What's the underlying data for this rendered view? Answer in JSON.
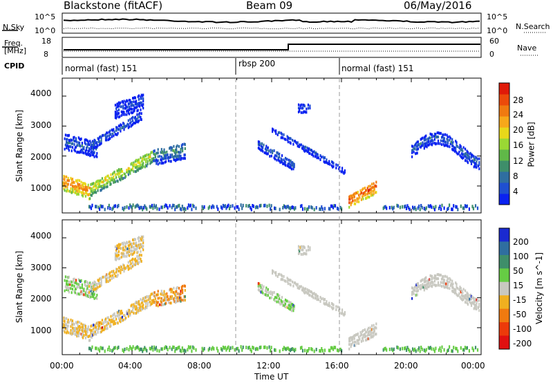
{
  "header": {
    "station": "Blackstone (fitACF)",
    "beam": "Beam 09",
    "date": "06/May/2016"
  },
  "top_panels": {
    "nsky_label": "N.Sky",
    "nsky_top": "10^5",
    "nsky_bottom": "10^0",
    "nsearch_top": "10^5",
    "nsearch_bottom": "10^0",
    "nsearch_label": "N.Search",
    "freq_label": "Freq.",
    "freq_unit": "[MHz]",
    "freq_top": "18",
    "freq_bottom": "8",
    "nave_top": "60",
    "nave_bottom": "0",
    "nave_label": "Nave",
    "cpid_label": "CPID",
    "cpid_segments": [
      {
        "label": "normal (fast) 151",
        "start_hour": 0
      },
      {
        "label": "rbsp 200",
        "start_hour": 10
      },
      {
        "label": "normal (fast) 151",
        "start_hour": 16
      }
    ]
  },
  "chart_data": [
    {
      "type": "heatmap",
      "title": "",
      "ylabel": "Slant Range [km]",
      "xlabel": "",
      "ylim": [
        100,
        4600
      ],
      "xlim_hours": [
        0,
        24
      ],
      "yticks": [
        "1000",
        "2000",
        "3000",
        "4000"
      ],
      "colorbar": {
        "label": "Power [dB]",
        "ticks": [
          "4",
          "8",
          "12",
          "16",
          "20",
          "24",
          "28"
        ],
        "colors": [
          "#0a22f0",
          "#1f4fd0",
          "#2f6ea0",
          "#3e8e6a",
          "#60b848",
          "#9ad834",
          "#e8d81a",
          "#f7a81a",
          "#f07a10",
          "#ec4a0a",
          "#e01a08"
        ]
      }
    },
    {
      "type": "heatmap",
      "title": "",
      "ylabel": "Slant Range [km]",
      "xlabel": "Time UT",
      "ylim": [
        100,
        4600
      ],
      "xlim_hours": [
        0,
        24
      ],
      "yticks": [
        "1000",
        "2000",
        "3000",
        "4000"
      ],
      "xticks": [
        "00:00",
        "04:00",
        "08:00",
        "12:00",
        "16:00",
        "20:00",
        "00:00"
      ],
      "colorbar": {
        "label": "Velocity [m s^-1]",
        "ticks": [
          "200",
          "100",
          "50",
          "15",
          "-15",
          "-50",
          "-100",
          "-200"
        ],
        "colors": [
          "#1a2ad0",
          "#2f6ea0",
          "#3e8e6a",
          "#66cc44",
          "#c8c8c0",
          "#f0b020",
          "#f07a10",
          "#ec3a0a",
          "#e01010"
        ]
      }
    }
  ]
}
